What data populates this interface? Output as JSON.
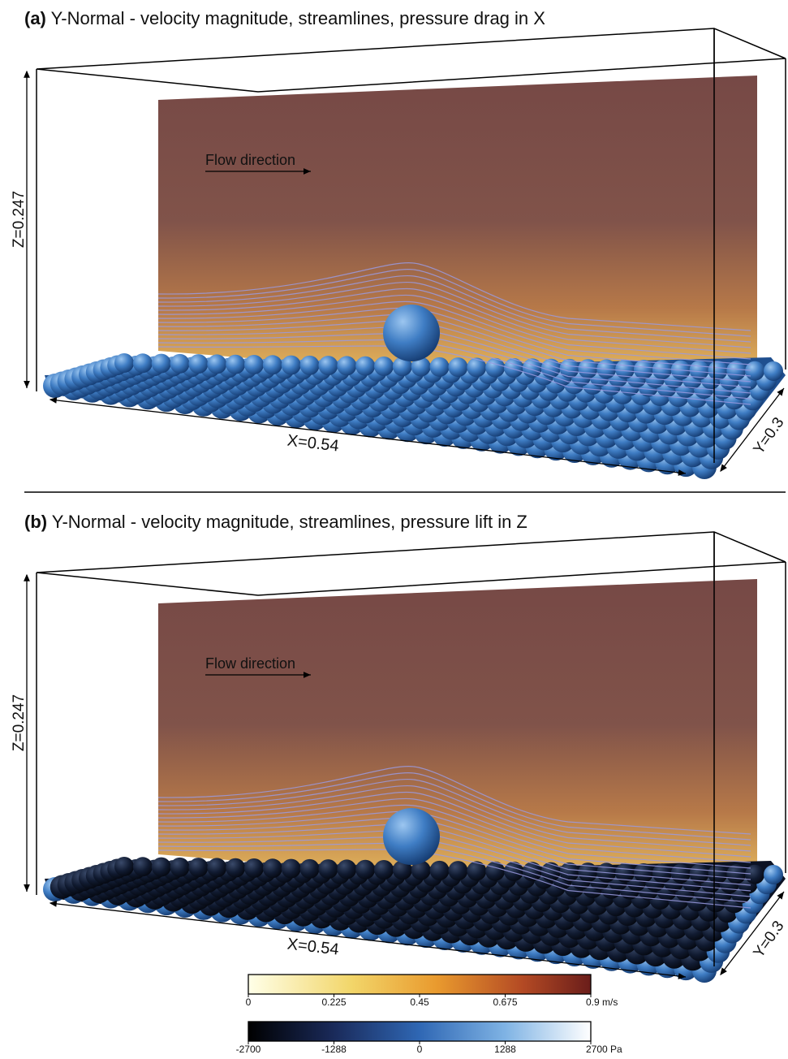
{
  "panels": [
    {
      "label": "(a)",
      "title": "Y-Normal - velocity magnitude, streamlines, pressure drag in X",
      "flow": "Flow direction",
      "z_dim": "Z=0.247",
      "x_dim": "X=0.54",
      "y_dim": "Y=0.3"
    },
    {
      "label": "(b)",
      "title": "Y-Normal - velocity magnitude, streamlines, pressure lift in Z",
      "flow": "Flow direction",
      "z_dim": "Z=0.247",
      "x_dim": "X=0.54",
      "y_dim": "Y=0.3"
    }
  ],
  "colorbars": [
    {
      "ticks": [
        "0",
        "0.225",
        "0.45",
        "0.675",
        "0.9 m/s"
      ]
    },
    {
      "ticks": [
        "-2700",
        "-1288",
        "0",
        "1288",
        "2700 Pa"
      ]
    }
  ]
}
